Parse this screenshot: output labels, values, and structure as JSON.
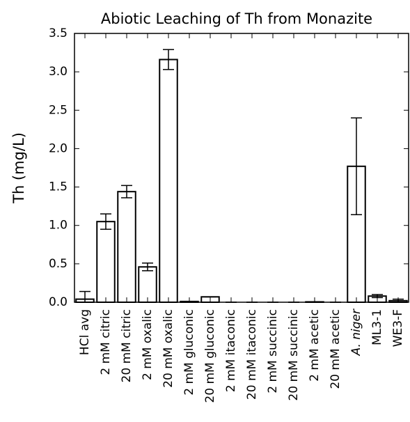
{
  "chart_data": {
    "type": "bar",
    "title": "Abiotic Leaching of Th from Monazite",
    "ylabel": "Th (mg/L)",
    "categories": [
      "HCl avg",
      "2 mM citric",
      "20 mM citric",
      "2 mM oxalic",
      "20 mM oxalic",
      "2 mM gluconic",
      "20 mM gluconic",
      "2 mM itaconic",
      "20 mM itaconic",
      "2 mM succinic",
      "20 mM succinic",
      "2 mM acetic",
      "20 mM acetic",
      "A. niger",
      "ML3-1",
      "WE3-F"
    ],
    "values": [
      0.04,
      1.05,
      1.44,
      0.46,
      3.16,
      0.01,
      0.07,
      0,
      0,
      0,
      0,
      0.005,
      0,
      1.77,
      0.08,
      0.02
    ],
    "errors": [
      0.1,
      0.1,
      0.08,
      0.05,
      0.13,
      0,
      0,
      0,
      0,
      0,
      0,
      0,
      0,
      0.63,
      0.02,
      0.02
    ],
    "color": "#ffffff",
    "ylim": [
      0,
      3.5
    ],
    "yticks": [
      {
        "value": 0,
        "label": "0.0"
      },
      0.5,
      {
        "value": 1,
        "label": "1.0"
      },
      1.5,
      {
        "value": 2,
        "label": "2.0"
      },
      2.5,
      {
        "value": 3,
        "label": "3.0"
      },
      3.5
    ]
  }
}
